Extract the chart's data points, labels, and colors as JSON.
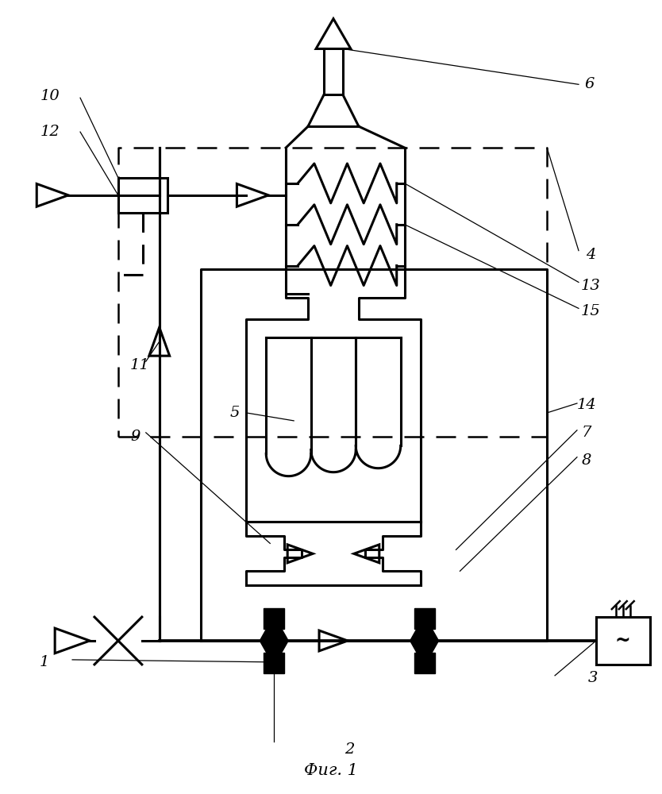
{
  "title": "Фиг. 1",
  "bg": "#ffffff",
  "lc": "#000000",
  "lw": 2.2,
  "fig_w": 8.34,
  "fig_h": 10.0,
  "dpi": 100
}
